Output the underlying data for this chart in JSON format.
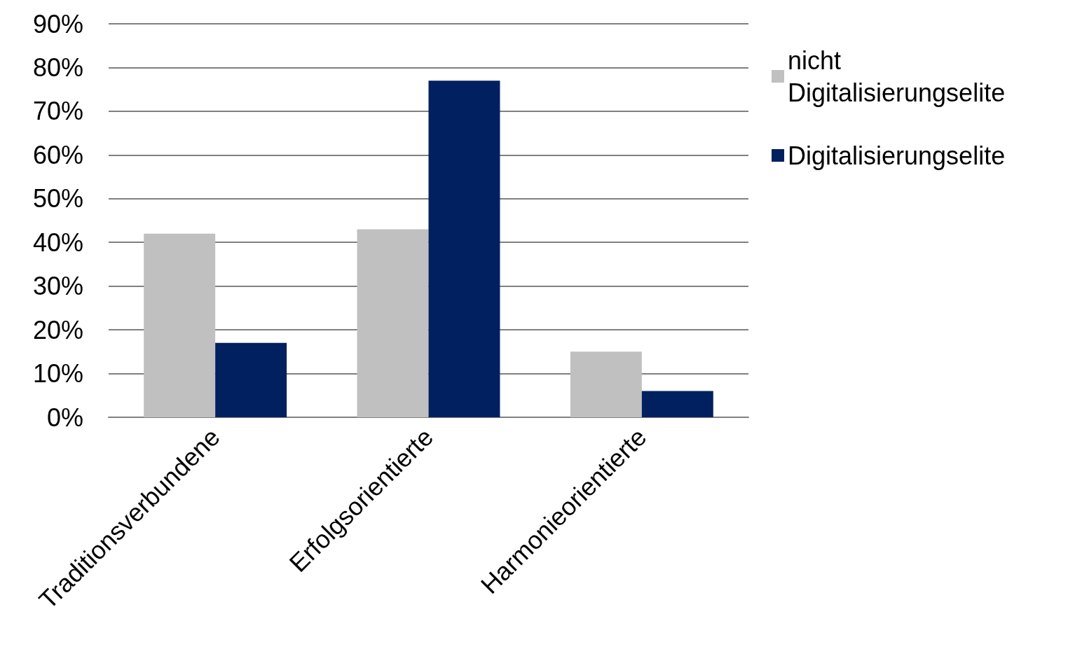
{
  "chart_data": {
    "type": "bar",
    "categories": [
      "Traditionsverbundene",
      "Erfolgsorientierte",
      "Harmonieorientierte"
    ],
    "series": [
      {
        "name": "nicht Digitalisierungselite",
        "color": "#c0c0c0",
        "values": [
          42,
          43,
          15
        ]
      },
      {
        "name": "Digitalisierungselite",
        "color": "#002060",
        "values": [
          17,
          77,
          6
        ]
      }
    ],
    "ylim": [
      0,
      90
    ],
    "yticks": [
      {
        "value": 0,
        "label": "0%"
      },
      {
        "value": 10,
        "label": "10%"
      },
      {
        "value": 20,
        "label": "20%"
      },
      {
        "value": 30,
        "label": "30%"
      },
      {
        "value": 40,
        "label": "40%"
      },
      {
        "value": 50,
        "label": "50%"
      },
      {
        "value": 60,
        "label": "60%"
      },
      {
        "value": 70,
        "label": "70%"
      },
      {
        "value": 80,
        "label": "80%"
      },
      {
        "value": 90,
        "label": "90%"
      }
    ],
    "grid": "y",
    "legend": "top right"
  }
}
